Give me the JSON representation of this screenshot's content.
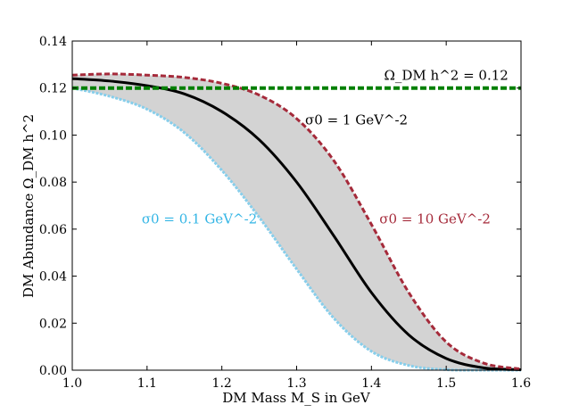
{
  "chart_data": {
    "type": "line",
    "xlabel": "DM Mass M_S in GeV",
    "ylabel": "DM Abundance Ω_DM h^2",
    "xlim": [
      1.0,
      1.6
    ],
    "ylim": [
      0.0,
      0.14
    ],
    "x_ticks": [
      "1.0",
      "1.1",
      "1.2",
      "1.3",
      "1.4",
      "1.5",
      "1.6"
    ],
    "y_ticks": [
      "0.00",
      "0.02",
      "0.04",
      "0.06",
      "0.08",
      "0.10",
      "0.12",
      "0.14"
    ],
    "grid": false,
    "x": [
      1.0,
      1.05,
      1.1,
      1.15,
      1.2,
      1.25,
      1.3,
      1.35,
      1.4,
      1.45,
      1.5,
      1.55,
      1.6
    ],
    "series": [
      {
        "name": "σ0 = 0.1 GeV^-2",
        "color": "#87ceeb",
        "style": "dashed",
        "values": [
          0.12,
          0.1165,
          0.111,
          0.101,
          0.085,
          0.065,
          0.043,
          0.022,
          0.008,
          0.002,
          0.0002,
          0.0,
          0.0
        ]
      },
      {
        "name": "σ0 = 1 GeV^-2",
        "color": "#000000",
        "style": "solid",
        "values": [
          0.124,
          0.123,
          0.121,
          0.1175,
          0.11,
          0.098,
          0.08,
          0.057,
          0.033,
          0.015,
          0.005,
          0.001,
          0.0002
        ]
      },
      {
        "name": "σ0 = 10 GeV^-2",
        "color": "#a52a3a",
        "style": "dashed",
        "values": [
          0.1255,
          0.126,
          0.1255,
          0.1245,
          0.122,
          0.117,
          0.107,
          0.089,
          0.062,
          0.033,
          0.012,
          0.003,
          0.0005
        ]
      },
      {
        "name": "Ω_DM h^2 = 0.12",
        "color": "#008000",
        "style": "dashed-thick",
        "values": [
          0.12,
          0.12,
          0.12,
          0.12,
          0.12,
          0.12,
          0.12,
          0.12,
          0.12,
          0.12,
          0.12,
          0.12,
          0.12
        ]
      }
    ],
    "band_fill_color": "#d3d3d3",
    "annotations": [
      {
        "id": "omega",
        "text": "Ω_DM h^2 = 0.12",
        "color": "#000000",
        "x": 1.5,
        "y": 0.1235
      },
      {
        "id": "s1",
        "text": "σ0 = 1 GeV^-2",
        "color": "#000000",
        "x": 1.38,
        "y": 0.1045
      },
      {
        "id": "s01",
        "text": "σ0 = 0.1 GeV^-2",
        "color": "#33b5e5",
        "x": 1.17,
        "y": 0.0625
      },
      {
        "id": "s10",
        "text": "σ0 = 10 GeV^-2",
        "color": "#a52a3a",
        "x": 1.485,
        "y": 0.0625
      }
    ]
  }
}
